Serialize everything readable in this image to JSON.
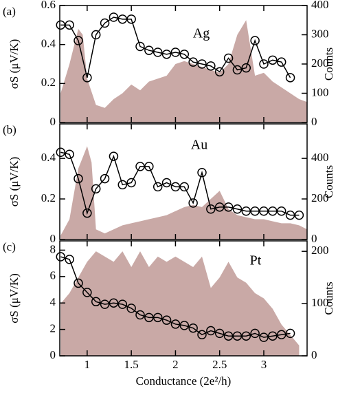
{
  "chart_data": [
    {
      "type": "line",
      "panel_label": "(a)",
      "annotation": "Ag",
      "ylabel": "σS (μV/K)",
      "y2label": "Counts",
      "xlim": [
        0.69,
        3.49
      ],
      "xticks": [
        1,
        1.5,
        2,
        2.5,
        3
      ],
      "show_xtick_labels": false,
      "ylim": [
        0,
        0.6
      ],
      "yticks": [
        0,
        0.2,
        0.4,
        0.6
      ],
      "y2lim": [
        0,
        400
      ],
      "y2ticks": [
        0,
        100,
        200,
        300,
        400
      ],
      "series": [
        {
          "type": "area",
          "axis": "y2",
          "color": "#c9a9a6",
          "x": [
            0.7,
            0.8,
            0.9,
            0.95,
            1.0,
            1.1,
            1.2,
            1.3,
            1.4,
            1.5,
            1.6,
            1.7,
            1.8,
            1.9,
            2.0,
            2.1,
            2.2,
            2.3,
            2.4,
            2.5,
            2.6,
            2.7,
            2.8,
            2.9,
            3.0,
            3.1,
            3.2,
            3.3,
            3.4,
            3.49
          ],
          "values": [
            100,
            200,
            320,
            300,
            150,
            60,
            50,
            80,
            100,
            130,
            110,
            140,
            150,
            160,
            200,
            210,
            200,
            190,
            180,
            170,
            200,
            300,
            350,
            160,
            170,
            140,
            120,
            100,
            80,
            70
          ]
        },
        {
          "type": "line",
          "marker": "circle",
          "color": "#000000",
          "x": [
            0.7,
            0.8,
            0.9,
            1.0,
            1.1,
            1.2,
            1.3,
            1.4,
            1.5,
            1.6,
            1.7,
            1.8,
            1.9,
            2.0,
            2.1,
            2.2,
            2.3,
            2.4,
            2.5,
            2.6,
            2.7,
            2.8,
            2.9,
            3.0,
            3.1,
            3.2,
            3.3
          ],
          "values": [
            0.5,
            0.5,
            0.42,
            0.23,
            0.45,
            0.51,
            0.54,
            0.53,
            0.53,
            0.39,
            0.37,
            0.36,
            0.35,
            0.36,
            0.35,
            0.31,
            0.3,
            0.29,
            0.26,
            0.33,
            0.27,
            0.28,
            0.42,
            0.3,
            0.32,
            0.31,
            0.23
          ]
        }
      ]
    },
    {
      "type": "line",
      "panel_label": "(b)",
      "annotation": "Au",
      "ylabel": "σS (μV/K)",
      "y2label": "Counts",
      "xlim": [
        0.69,
        3.49
      ],
      "xticks": [
        1,
        1.5,
        2,
        2.5,
        3
      ],
      "show_xtick_labels": false,
      "ylim": [
        0,
        0.57
      ],
      "yticks": [
        0,
        0.2,
        0.4
      ],
      "y2lim": [
        0,
        570
      ],
      "y2ticks": [
        0,
        200,
        400
      ],
      "series": [
        {
          "type": "area",
          "axis": "y2",
          "color": "#c9a9a6",
          "x": [
            0.7,
            0.8,
            0.9,
            1.0,
            1.05,
            1.1,
            1.2,
            1.3,
            1.4,
            1.5,
            1.6,
            1.7,
            1.8,
            1.9,
            2.0,
            2.1,
            2.2,
            2.3,
            2.4,
            2.5,
            2.6,
            2.7,
            2.8,
            2.9,
            3.0,
            3.1,
            3.2,
            3.3,
            3.4,
            3.49
          ],
          "values": [
            20,
            100,
            350,
            460,
            380,
            50,
            30,
            50,
            70,
            80,
            90,
            100,
            110,
            120,
            140,
            160,
            170,
            160,
            200,
            240,
            150,
            120,
            110,
            100,
            100,
            90,
            80,
            80,
            70,
            50
          ]
        },
        {
          "type": "line",
          "marker": "circle",
          "color": "#000000",
          "x": [
            0.7,
            0.8,
            0.9,
            1.0,
            1.1,
            1.2,
            1.3,
            1.4,
            1.5,
            1.6,
            1.7,
            1.8,
            1.9,
            2.0,
            2.1,
            2.2,
            2.3,
            2.4,
            2.5,
            2.6,
            2.7,
            2.8,
            2.9,
            3.0,
            3.1,
            3.2,
            3.3,
            3.4
          ],
          "values": [
            0.43,
            0.42,
            0.3,
            0.13,
            0.25,
            0.3,
            0.41,
            0.27,
            0.28,
            0.36,
            0.36,
            0.26,
            0.28,
            0.26,
            0.26,
            0.18,
            0.33,
            0.15,
            0.16,
            0.16,
            0.15,
            0.14,
            0.14,
            0.14,
            0.14,
            0.14,
            0.12,
            0.12
          ]
        }
      ]
    },
    {
      "type": "line",
      "panel_label": "(c)",
      "annotation": "Pt",
      "ylabel": "σS (μV/K)",
      "y2label": "Counts",
      "xlabel": "Conductance (2e²/h)",
      "xlim": [
        0.69,
        3.49
      ],
      "xticks": [
        1,
        1.5,
        2,
        2.5,
        3
      ],
      "show_xtick_labels": true,
      "ylim": [
        0,
        8.7
      ],
      "yticks": [
        0,
        2,
        4,
        6,
        8
      ],
      "y2lim": [
        0,
        220
      ],
      "y2ticks": [
        0,
        100,
        200
      ],
      "series": [
        {
          "type": "area",
          "axis": "y2",
          "color": "#c9a9a6",
          "x": [
            0.7,
            0.8,
            0.9,
            1.0,
            1.1,
            1.2,
            1.3,
            1.4,
            1.5,
            1.6,
            1.7,
            1.8,
            1.9,
            2.0,
            2.1,
            2.2,
            2.3,
            2.4,
            2.5,
            2.6,
            2.7,
            2.8,
            2.9,
            3.0,
            3.1,
            3.2,
            3.3,
            3.4
          ],
          "values": [
            100,
            120,
            150,
            180,
            200,
            190,
            180,
            200,
            170,
            200,
            170,
            190,
            180,
            190,
            180,
            170,
            190,
            130,
            150,
            180,
            150,
            140,
            120,
            110,
            90,
            60,
            40,
            20
          ]
        },
        {
          "type": "line",
          "marker": "circle",
          "color": "#000000",
          "x": [
            0.7,
            0.8,
            0.9,
            1.0,
            1.1,
            1.2,
            1.3,
            1.4,
            1.5,
            1.6,
            1.7,
            1.8,
            1.9,
            2.0,
            2.1,
            2.2,
            2.3,
            2.4,
            2.5,
            2.6,
            2.7,
            2.8,
            2.9,
            3.0,
            3.1,
            3.2,
            3.3
          ],
          "values": [
            7.5,
            7.3,
            5.5,
            4.8,
            4.1,
            3.9,
            4.0,
            3.9,
            3.6,
            3.1,
            2.9,
            2.9,
            2.7,
            2.4,
            2.3,
            2.1,
            1.6,
            1.9,
            1.7,
            1.5,
            1.5,
            1.5,
            1.7,
            1.4,
            1.5,
            1.6,
            1.7
          ]
        }
      ]
    }
  ]
}
